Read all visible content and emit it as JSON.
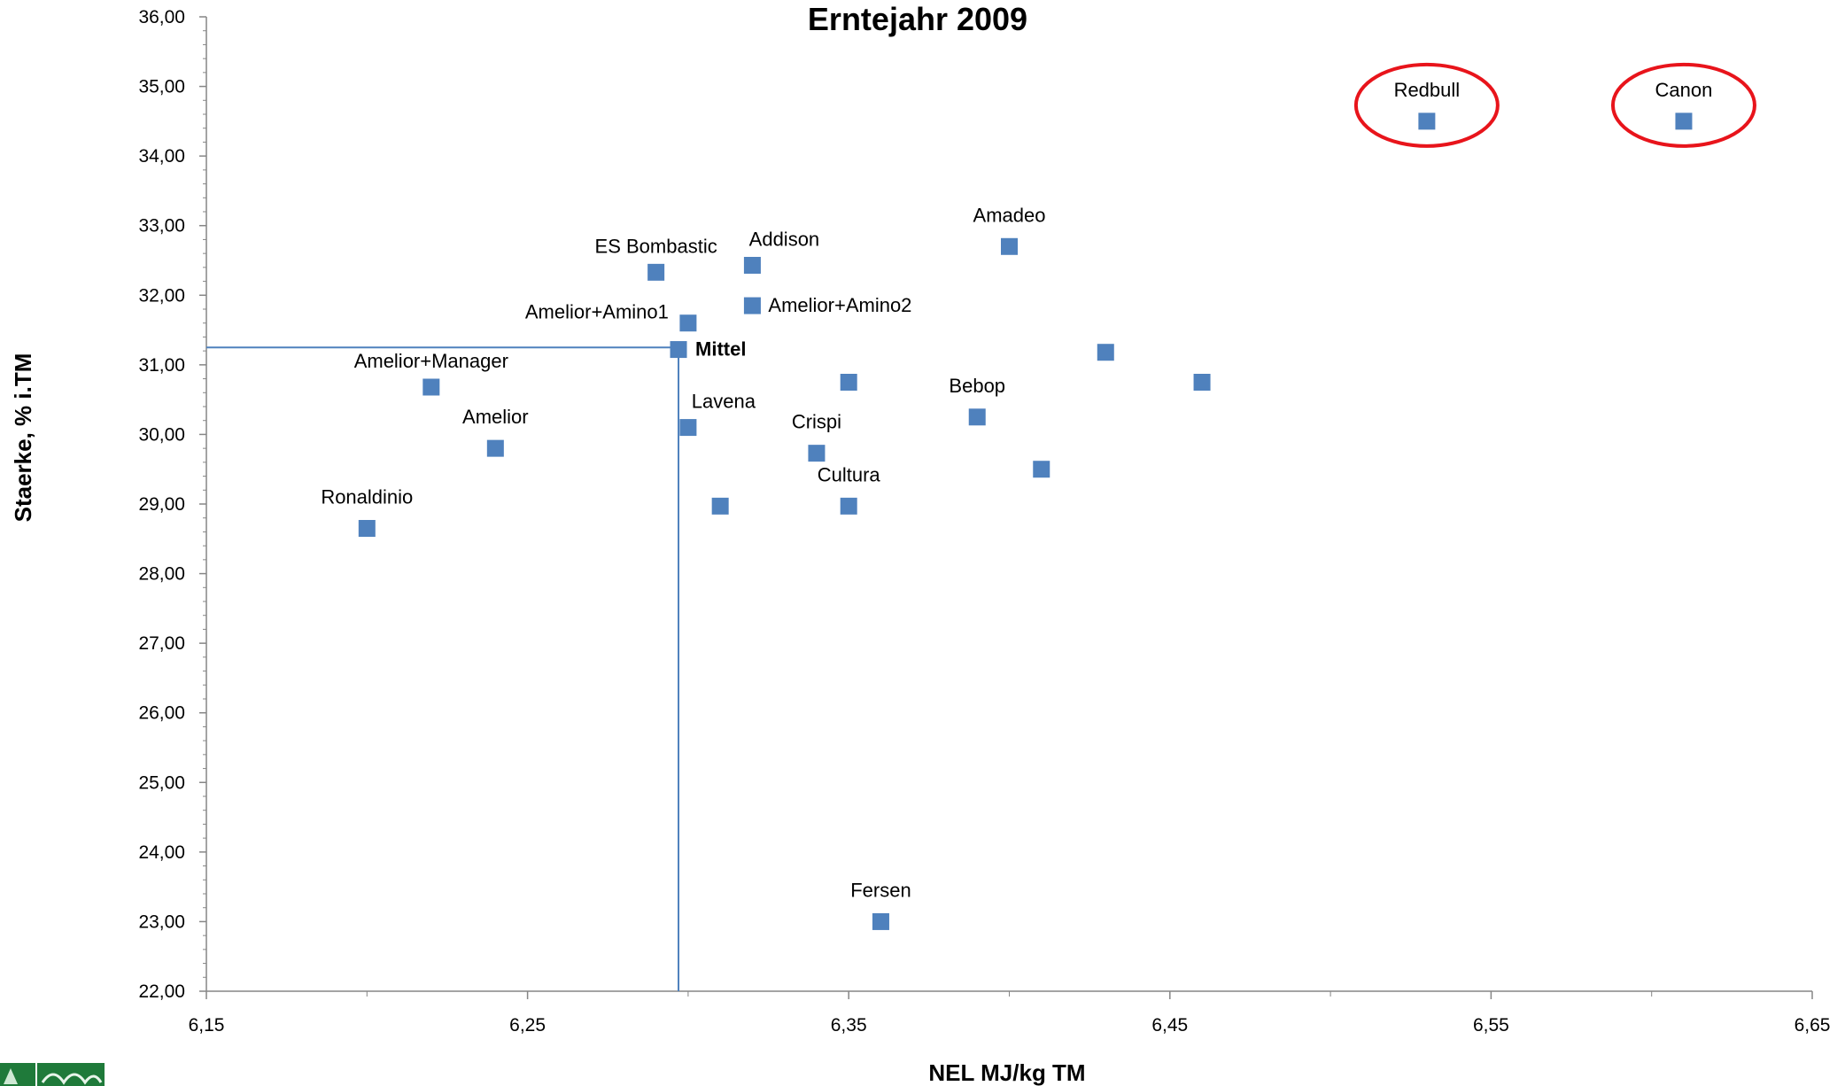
{
  "chart_data": {
    "type": "scatter",
    "title": "Erntejahr 2009",
    "xlabel": "NEL MJ/kg TM",
    "ylabel": "Staerke, % i.TM",
    "xlim": [
      6.15,
      6.65
    ],
    "ylim": [
      22.0,
      36.0
    ],
    "xticks": [
      "6,15",
      "6,25",
      "6,35",
      "6,45",
      "6,55",
      "6,65"
    ],
    "yticks": [
      "22,00",
      "23,00",
      "24,00",
      "25,00",
      "26,00",
      "27,00",
      "28,00",
      "29,00",
      "30,00",
      "31,00",
      "32,00",
      "33,00",
      "34,00",
      "35,00",
      "36,00"
    ],
    "grid": false,
    "legend": "none",
    "marker_color": "#4f81bd",
    "highlight_color": "#e8141b",
    "series": [
      {
        "points": [
          {
            "label": "Redbull",
            "x": 6.53,
            "y": 34.5,
            "highlight": true
          },
          {
            "label": "Canon",
            "x": 6.61,
            "y": 34.5,
            "highlight": true
          },
          {
            "label": "Amadeo",
            "x": 6.4,
            "y": 32.7
          },
          {
            "label": "ES Bombastic",
            "x": 6.29,
            "y": 32.33
          },
          {
            "label": "Addison",
            "x": 6.32,
            "y": 32.43
          },
          {
            "label": "Amelior+Amino2",
            "x": 6.32,
            "y": 31.85
          },
          {
            "label": "Amelior+Amino1",
            "x": 6.3,
            "y": 31.6
          },
          {
            "label": "Mittel",
            "x": 6.297,
            "y": 31.22,
            "bold": true
          },
          {
            "label": "Amelior+Manager",
            "x": 6.22,
            "y": 30.68
          },
          {
            "label": "Amelior",
            "x": 6.24,
            "y": 29.8
          },
          {
            "label": "Lavena",
            "x": 6.3,
            "y": 30.1
          },
          {
            "label": "Crispi",
            "x": 6.34,
            "y": 29.73
          },
          {
            "label": "Bebop",
            "x": 6.39,
            "y": 30.25
          },
          {
            "label": "Cultura",
            "x": 6.35,
            "y": 28.97
          },
          {
            "label": "Ronaldinio",
            "x": 6.2,
            "y": 28.65
          },
          {
            "label": "Fersen",
            "x": 6.36,
            "y": 23.0
          },
          {
            "label": "",
            "x": 6.35,
            "y": 30.75
          },
          {
            "label": "",
            "x": 6.31,
            "y": 28.97
          },
          {
            "label": "",
            "x": 6.43,
            "y": 31.18
          },
          {
            "label": "",
            "x": 6.46,
            "y": 30.75
          },
          {
            "label": "",
            "x": 6.41,
            "y": 29.5
          }
        ]
      }
    ],
    "reference_lines": {
      "x": 6.297,
      "y": 31.25
    }
  }
}
